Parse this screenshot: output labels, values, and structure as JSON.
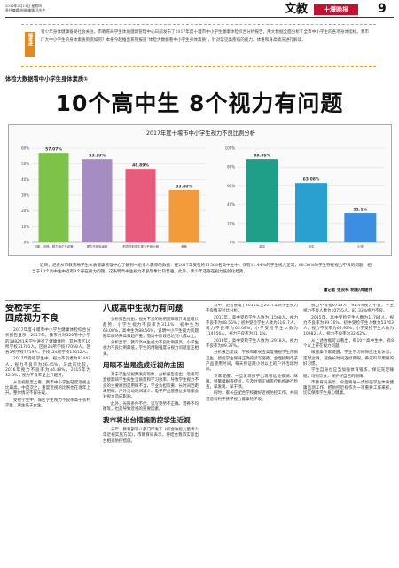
{
  "header": {
    "date_line": "2019年4月11日 星期四",
    "editor_line": "责任编辑/张琳 编辑/马先生",
    "section": "文教",
    "paper_name": "十堰晚报",
    "page_no": "9"
  },
  "editor_note": {
    "tag": "编者按",
    "text": "青少年身体健康备受社会关注。市教育局学生体质健康管理中心日前发布了2017年度十堰市中小学生健康体检综合分析报告，用大数据全面分析了全市中小学生的各项身体指标。我市广大中小学生的身体素质到底如何？本报今起推出系列报道“体检大数据看中小学生身体素质”，针对常见类疾病的视力、体重和身高情况进行解读。"
  },
  "kicker": "体检大数据看中小学生身体素质①",
  "headline": "10个高中生 8个视力有问题",
  "chart_title": "2017年度十堰市中小学生视力不良比例分析",
  "chart_data": [
    {
      "type": "bar",
      "categories": [
        "可能、近视、视力矫正不足等",
        "视力不良年级段",
        "不同性别学生视力不良比例",
        "其他"
      ],
      "values": [
        57.07,
        53.1,
        46.89,
        33.4
      ],
      "value_labels": [
        "57.07%",
        "53.10%",
        "46.89%",
        "33.40%"
      ],
      "colors": [
        "#7ec24a",
        "#a58cc1",
        "#e85b7d",
        "#f39a3a"
      ],
      "ylim": [
        0,
        60
      ],
      "yticks": [
        "0%",
        "10%",
        "20%",
        "30%",
        "40%",
        "50%",
        "60%"
      ],
      "grid": true
    },
    {
      "type": "bar",
      "categories": [
        "高中",
        "初中",
        "小学"
      ],
      "values": [
        88.56,
        63.08,
        31.1
      ],
      "value_labels": [
        "88.56%",
        "63.08%",
        "31.1%"
      ],
      "colors": [
        "#1f9e88",
        "#2aa0d0",
        "#3b8ee0"
      ],
      "ylim": [
        0,
        100
      ],
      "yticks": [
        "0%",
        "20%",
        "40%",
        "60%",
        "80%",
        "100%"
      ],
      "grid": true
    }
  ],
  "lead": {
    "text": "近日，记者从市教育局学生体质健康管理中心了解到一组令人震惊的数据：在2017年受检的11568名高中生中，仅有11.44%的学生视力正常，88.56%的学生存在视力不良的问题，相当于10个高中生中近有9个存在视力问题，这表明高中生视力不良现象比较普遍。此外，青少年还存在视力低龄化趋势。",
    "byline": "■记者 张良林 制图/周建伟"
  },
  "col1": {
    "title": "受检学生",
    "title2": "四成视力不良",
    "paragraphs": [
      "2017年度十堰市中小学生健康体检综合分析报告显示，2017年，我市共对320所中小学的188241名学生进行了健康体检，其中市区16所学校31701人，区县26所学校27058人，区县5所学校7719人，学校124所学校13612人。",
      "2017年受检学生中，视力不良者为87447人，视力不良率为46.45%。与此前比较，2016年视力不良率为44.48%，2015年为42.8%，视力不良率呈上升趋势。",
      "从近视程度上看，我市中小学生轻度近视占比最高，中度次之，重度近视的比例也在逐年上升。整体情况不容乐观。",
      "受检学生中，城区学生视力不良率高于农村学生，男生低于女生。"
    ]
  },
  "col2": {
    "title": "八成高中生视力有问题",
    "paragraphs": [
      "分析报告指出，视力不良的比例随年级升高呈增长趋势。小学生视力不良率为31.1%，初中生为63.08%，高中生为88.56%，说明中小学生视力问题随年级的升高日趋严重，而高中阶段已达到八成以上。",
      "分析显示，我市高中生视力不良比例最高，小学生视力不良比例最低，学生的用眼强度与视力问题呈正相关。"
    ],
    "sub_title": "用眼不当是造成近视的主因",
    "sub_paragraphs": [
      "对于学生近视频发的现象，分析报告指出，近视可直接影响学生的生活质量和学习效率。导致学生视力不良的主要原因是用眼不当，学业负担较重、长时间近距离用眼、户外活动时间减少、电子产品使用过多等都会对视力造成影响。",
      "此外，光照条件不佳、读写姿势不正确、营养不均衡等，也是导致近视的重要因素。"
    ],
    "sub_title2": "我市将出台措施防控学生近视",
    "sub_paragraphs2": [
      "去年，教育部等八部门印发了《综合防控儿童青少年近视实施方案》，市教育局表示，将结合我市实际出台相关防控措施。"
    ]
  },
  "col3": {
    "paragraphs": [
      "其中，记者整理了2015年至2017年的学生视力不良情况对比分析。",
      "2017年，高中受检学生人数为11568人，视力不良率为88.56%；初中受检学生人数为61617人，视力不良率为63.08%；小学受检学生人数为114956人，视力不良率为31.1%。",
      "2016年，高中受检学生人数为12918人，视力不良率为89.37%。",
      "分析报告建议，学校和家长应高度重视学生用眼卫生，督促学生保持正确的读写姿势，合理控制电子产品使用时间，每天保证两小时以上的户外活动时间。",
      "专家提醒，一旦发现孩子出现看远处模糊、眯眼、频繁揉眼等症状，应及时到正规医疗机构进行检查，早发现、早干预。",
      "同时，家长应配合学校做好近视防控工作，共同营造有利于孩子视力健康的环境。"
    ]
  },
  "col4": {
    "paragraphs": [
      "视力不良者6753人，91.4%视力不良；学生视力不良人数为10755人，87.33%视力不良。",
      "2015年，高中受检学生人数为11784人，视力不良率为89.76%，初中受检学生人数为53763人，视力不良率为66.92%；小学受检学生人数为109821人，视力不良率为32.62%。",
      "从上述数据可以看出，每10个高中生中，有8个以上存在视力问题。",
      "眼健康专家提醒，学生学习间隙应注意休息，定时远眺，避免长时间连续用眼，养成科学用眼的好习惯。",
      "学生自身也应当加强体育锻炼，保证充足睡眠，均衡饮食，保护好自己的眼睛。",
      "市教育局表示，今后将进一步加强学生体质健康监测工作，把防控近视作为一项重要工作来抓，切实保障学生身心健康。"
    ]
  }
}
